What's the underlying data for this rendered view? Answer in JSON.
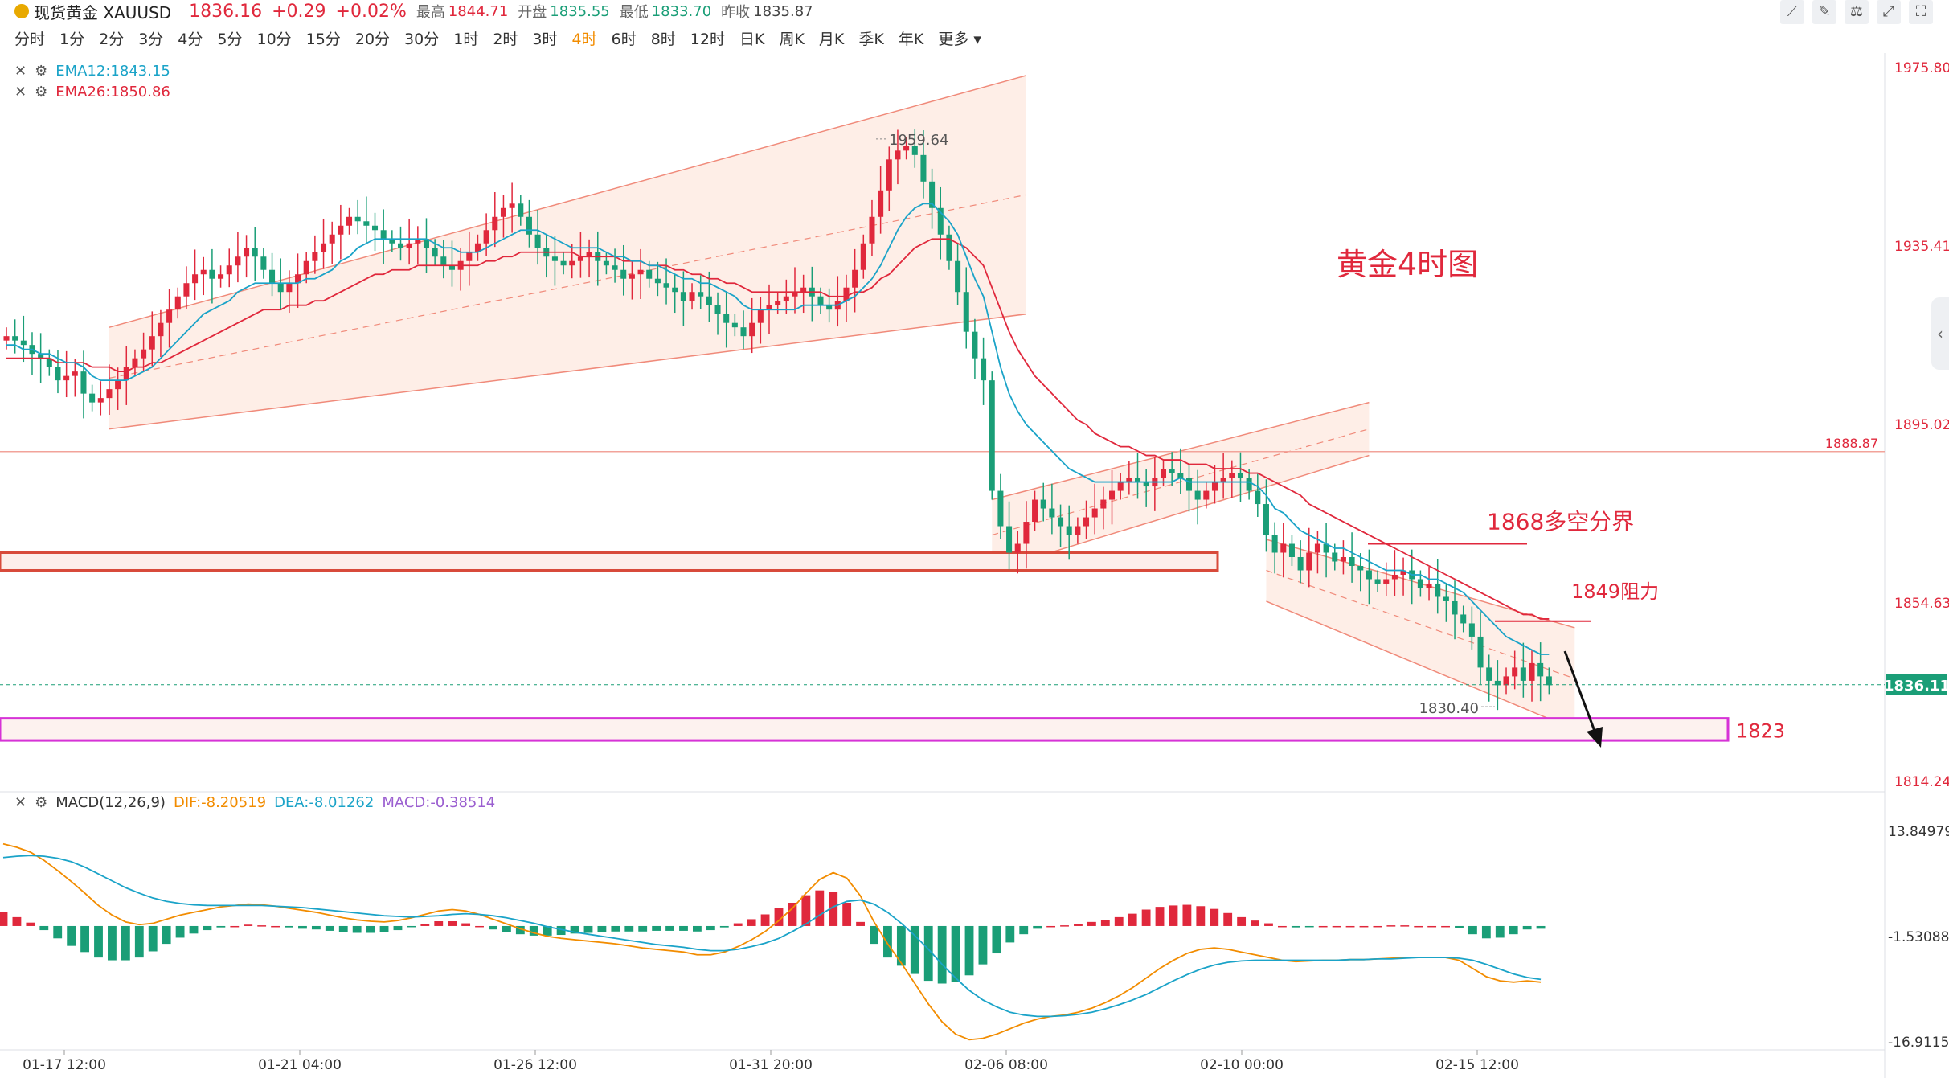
{
  "header": {
    "symbol": "现货黄金 XAUUSD",
    "price": "1836.16",
    "change": "+0.29",
    "change_pct": "+0.02%",
    "high_label": "最高",
    "high": "1844.71",
    "open_label": "开盘",
    "open": "1835.55",
    "low_label": "最低",
    "low": "1833.70",
    "prev_label": "昨收",
    "prev": "1835.87"
  },
  "timeframes": [
    "分时",
    "1分",
    "2分",
    "3分",
    "4分",
    "5分",
    "10分",
    "15分",
    "20分",
    "30分",
    "1时",
    "2时",
    "3时",
    "4时",
    "6时",
    "8时",
    "12时",
    "日K",
    "周K",
    "月K",
    "季K",
    "年K",
    "更多"
  ],
  "active_timeframe": "4时",
  "toolbar_icons": [
    "draw-line-icon",
    "edit-icon",
    "indicator-icon",
    "expand-icon",
    "fullscreen-icon"
  ],
  "ema_legend": [
    {
      "label": "EMA12:1843.15",
      "color": "#1aa3c8"
    },
    {
      "label": "EMA26:1850.86",
      "color": "#e0283c"
    }
  ],
  "macd_legend": {
    "name": "MACD(12,26,9)",
    "dif": "DIF:-8.20519",
    "dea": "DEA:-8.01262",
    "macd": "MACD:-0.38514",
    "dif_color": "#f28c00",
    "dea_color": "#1aa3c8",
    "macd_color": "#9b5fd0"
  },
  "colors": {
    "up": "#e0283c",
    "down": "#1a9e77",
    "ema12": "#1aa3c8",
    "ema26": "#e0283c",
    "channel": "#f5c4b4",
    "support_box": "#d84a3a",
    "target_box": "#d633d6",
    "annotation": "#e0283c"
  },
  "chart_data": [
    {
      "type": "candlestick",
      "title": "黄金4时图",
      "ylim": [
        1814.24,
        1975.8
      ],
      "y_ticks": [
        "1975.80",
        "1935.41",
        "1895.02",
        "1854.63",
        "1814.24"
      ],
      "x_ticks": [
        "01-17 12:00",
        "01-21 04:00",
        "01-26 12:00",
        "01-31 20:00",
        "02-06 08:00",
        "02-10 00:00",
        "02-15 12:00"
      ],
      "current_price_label": "1836.11",
      "line_level": {
        "value": 1888.87,
        "label": "1888.87"
      },
      "high_marker": {
        "value": 1959.64,
        "label": "1959.64"
      },
      "low_marker": {
        "value": 1830.4,
        "label": "1830.40"
      },
      "annotations": [
        {
          "text": "1868多空分界",
          "value": 1868
        },
        {
          "text": "1849阻力",
          "value": 1849
        },
        {
          "text": "1823",
          "value": 1823
        }
      ],
      "support_zone": [
        1862,
        1866
      ],
      "target_zone": [
        1823.5,
        1828.5
      ],
      "close_series": [
        1915,
        1914,
        1913,
        1911,
        1910,
        1908,
        1905,
        1906,
        1907,
        1902,
        1900,
        1901,
        1903,
        1905,
        1908,
        1910,
        1912,
        1915,
        1918,
        1921,
        1924,
        1927,
        1929,
        1930,
        1928,
        1929,
        1931,
        1933,
        1935,
        1933,
        1930,
        1927,
        1925,
        1927,
        1929,
        1932,
        1934,
        1936,
        1938,
        1940,
        1942,
        1941,
        1940,
        1939,
        1937,
        1936,
        1935,
        1936,
        1937,
        1935,
        1933,
        1931,
        1930,
        1932,
        1934,
        1936,
        1939,
        1942,
        1944,
        1945,
        1942,
        1938,
        1935,
        1933,
        1932,
        1931,
        1932,
        1933,
        1934,
        1932,
        1931,
        1930,
        1928,
        1929,
        1930,
        1928,
        1927,
        1926,
        1925,
        1923,
        1925,
        1924,
        1922,
        1920,
        1918,
        1917,
        1915,
        1918,
        1921,
        1922,
        1923,
        1924,
        1925,
        1926,
        1924,
        1922,
        1921,
        1923,
        1926,
        1930,
        1936,
        1942,
        1948,
        1955,
        1957,
        1958,
        1956,
        1950,
        1944,
        1938,
        1932,
        1925,
        1916,
        1910,
        1905,
        1880,
        1872,
        1866,
        1868,
        1873,
        1878,
        1876,
        1874,
        1872,
        1870,
        1872,
        1874,
        1876,
        1878,
        1880,
        1882,
        1883,
        1882,
        1881,
        1883,
        1885,
        1884,
        1883,
        1880,
        1878,
        1880,
        1882,
        1883,
        1884,
        1883,
        1880,
        1877,
        1870,
        1866,
        1868,
        1865,
        1862,
        1866,
        1868,
        1866,
        1864,
        1865,
        1863,
        1862,
        1860,
        1859,
        1860,
        1861,
        1862,
        1860,
        1858,
        1859,
        1856,
        1855,
        1852,
        1850,
        1847,
        1840,
        1837,
        1836,
        1838,
        1840,
        1837,
        1841,
        1838,
        1836
      ],
      "ema12_series": [
        1913,
        1913,
        1912,
        1912,
        1911,
        1911,
        1910,
        1909,
        1909,
        1908,
        1906,
        1905,
        1905,
        1905,
        1905,
        1906,
        1907,
        1908,
        1910,
        1912,
        1914,
        1916,
        1918,
        1920,
        1921,
        1922,
        1923,
        1925,
        1926,
        1927,
        1927,
        1927,
        1927,
        1927,
        1927,
        1928,
        1928,
        1929,
        1930,
        1932,
        1933,
        1935,
        1936,
        1937,
        1937,
        1937,
        1937,
        1937,
        1937,
        1937,
        1936,
        1935,
        1935,
        1934,
        1934,
        1934,
        1935,
        1936,
        1937,
        1938,
        1939,
        1939,
        1939,
        1938,
        1937,
        1936,
        1935,
        1935,
        1935,
        1935,
        1934,
        1933,
        1933,
        1932,
        1932,
        1931,
        1931,
        1930,
        1929,
        1928,
        1928,
        1927,
        1927,
        1926,
        1925,
        1924,
        1922,
        1921,
        1921,
        1921,
        1921,
        1921,
        1921,
        1922,
        1922,
        1922,
        1922,
        1922,
        1923,
        1924,
        1926,
        1928,
        1931,
        1935,
        1939,
        1942,
        1944,
        1945,
        1945,
        1943,
        1941,
        1938,
        1933,
        1928,
        1924,
        1916,
        1908,
        1902,
        1898,
        1895,
        1893,
        1891,
        1889,
        1887,
        1885,
        1884,
        1883,
        1882,
        1882,
        1882,
        1882,
        1882,
        1882,
        1882,
        1882,
        1882,
        1882,
        1883,
        1882,
        1882,
        1882,
        1882,
        1882,
        1882,
        1882,
        1882,
        1881,
        1879,
        1876,
        1875,
        1873,
        1871,
        1870,
        1869,
        1868,
        1867,
        1867,
        1866,
        1865,
        1864,
        1863,
        1862,
        1862,
        1862,
        1861,
        1861,
        1860,
        1860,
        1859,
        1858,
        1857,
        1855,
        1853,
        1851,
        1849,
        1847,
        1846,
        1845,
        1844,
        1843,
        1843
      ],
      "ema26_series": [
        1910,
        1910,
        1910,
        1910,
        1910,
        1910,
        1909,
        1909,
        1909,
        1909,
        1908,
        1908,
        1908,
        1907,
        1907,
        1908,
        1908,
        1909,
        1909,
        1910,
        1911,
        1912,
        1913,
        1914,
        1915,
        1916,
        1917,
        1918,
        1919,
        1920,
        1921,
        1921,
        1921,
        1922,
        1922,
        1922,
        1923,
        1923,
        1924,
        1925,
        1926,
        1927,
        1928,
        1929,
        1929,
        1930,
        1930,
        1930,
        1931,
        1931,
        1931,
        1931,
        1931,
        1931,
        1931,
        1931,
        1932,
        1932,
        1933,
        1933,
        1934,
        1934,
        1934,
        1934,
        1934,
        1934,
        1934,
        1933,
        1933,
        1933,
        1933,
        1933,
        1932,
        1932,
        1932,
        1931,
        1931,
        1931,
        1930,
        1930,
        1929,
        1929,
        1928,
        1928,
        1927,
        1927,
        1926,
        1925,
        1925,
        1925,
        1925,
        1925,
        1925,
        1925,
        1925,
        1925,
        1924,
        1924,
        1924,
        1925,
        1925,
        1926,
        1928,
        1929,
        1931,
        1933,
        1935,
        1936,
        1937,
        1937,
        1937,
        1936,
        1935,
        1933,
        1931,
        1926,
        1921,
        1916,
        1912,
        1909,
        1906,
        1904,
        1902,
        1900,
        1898,
        1896,
        1895,
        1893,
        1892,
        1891,
        1890,
        1890,
        1889,
        1888,
        1888,
        1887,
        1887,
        1887,
        1886,
        1886,
        1886,
        1885,
        1885,
        1885,
        1885,
        1884,
        1884,
        1883,
        1882,
        1881,
        1880,
        1879,
        1877,
        1876,
        1875,
        1874,
        1873,
        1872,
        1871,
        1870,
        1869,
        1868,
        1867,
        1866,
        1865,
        1864,
        1863,
        1862,
        1861,
        1860,
        1859,
        1858,
        1857,
        1856,
        1855,
        1854,
        1853,
        1852,
        1852,
        1851,
        1851
      ]
    },
    {
      "type": "bar+line",
      "title": "",
      "ylim": [
        -16.91154,
        13.84979
      ],
      "y_ticks": [
        "13.84979",
        "-1.53088",
        "-16.91154"
      ],
      "series": [
        {
          "name": "DIF",
          "values": [
            12,
            11.5,
            10.8,
            9.6,
            8.1,
            6.5,
            4.8,
            3.0,
            1.6,
            0.6,
            0.2,
            0.4,
            1.0,
            1.6,
            2.0,
            2.4,
            2.8,
            3.0,
            3.2,
            3.1,
            2.9,
            2.6,
            2.3,
            2.0,
            1.6,
            1.2,
            0.9,
            0.7,
            0.6,
            0.8,
            1.2,
            1.7,
            2.2,
            2.4,
            2.2,
            1.7,
            1.0,
            0.3,
            -0.4,
            -1.0,
            -1.5,
            -1.8,
            -2.0,
            -2.2,
            -2.4,
            -2.6,
            -2.9,
            -3.2,
            -3.4,
            -3.6,
            -3.8,
            -4.2,
            -4.2,
            -3.8,
            -3.0,
            -2.0,
            -0.8,
            0.8,
            2.6,
            4.8,
            6.8,
            7.8,
            7.0,
            4.4,
            0.6,
            -2.6,
            -5.4,
            -8.4,
            -11.4,
            -14.0,
            -15.8,
            -16.6,
            -16.4,
            -15.8,
            -15.0,
            -14.2,
            -13.6,
            -13.2,
            -13.0,
            -12.6,
            -12.0,
            -11.2,
            -10.2,
            -9.0,
            -7.6,
            -6.2,
            -5.0,
            -4.0,
            -3.4,
            -3.2,
            -3.4,
            -3.8,
            -4.2,
            -4.6,
            -5.0,
            -5.2,
            -5.1,
            -5.0,
            -5.0,
            -4.9,
            -4.9,
            -4.8,
            -4.7,
            -4.6,
            -4.6,
            -4.6,
            -4.6,
            -5.0,
            -6.2,
            -7.4,
            -8.0,
            -8.2,
            -8.0,
            -8.2
          ]
        },
        {
          "name": "DEA",
          "values": [
            10,
            10.2,
            10.3,
            10.2,
            9.9,
            9.4,
            8.6,
            7.6,
            6.6,
            5.6,
            4.8,
            4.1,
            3.6,
            3.3,
            3.1,
            3.0,
            3.0,
            3.0,
            3.0,
            3.0,
            2.9,
            2.8,
            2.7,
            2.5,
            2.3,
            2.1,
            1.9,
            1.7,
            1.5,
            1.4,
            1.3,
            1.4,
            1.5,
            1.7,
            1.8,
            1.7,
            1.5,
            1.2,
            0.8,
            0.4,
            -0.1,
            -0.5,
            -0.9,
            -1.2,
            -1.5,
            -1.8,
            -2.1,
            -2.4,
            -2.7,
            -2.9,
            -3.1,
            -3.4,
            -3.6,
            -3.6,
            -3.4,
            -3.0,
            -2.5,
            -1.8,
            -0.8,
            0.3,
            1.6,
            2.8,
            3.6,
            3.8,
            3.2,
            2.0,
            0.4,
            -1.4,
            -3.4,
            -5.6,
            -7.6,
            -9.4,
            -10.8,
            -11.8,
            -12.6,
            -13.0,
            -13.2,
            -13.2,
            -13.1,
            -12.9,
            -12.6,
            -12.1,
            -11.5,
            -10.8,
            -10.0,
            -9.0,
            -8.0,
            -7.1,
            -6.3,
            -5.7,
            -5.3,
            -5.1,
            -5.0,
            -5.0,
            -5.0,
            -5.0,
            -5.0,
            -5.0,
            -5.0,
            -4.9,
            -4.9,
            -4.8,
            -4.8,
            -4.7,
            -4.6,
            -4.6,
            -4.6,
            -4.7,
            -5.0,
            -5.6,
            -6.3,
            -7.0,
            -7.5,
            -7.8
          ]
        },
        {
          "name": "MACD",
          "values": [
            2.0,
            1.3,
            0.5,
            -0.6,
            -1.8,
            -2.9,
            -3.8,
            -4.6,
            -5.0,
            -5.0,
            -4.6,
            -3.7,
            -2.6,
            -1.7,
            -1.1,
            -0.6,
            -0.2,
            0.0,
            0.2,
            0.1,
            0.0,
            -0.2,
            -0.4,
            -0.5,
            -0.7,
            -0.9,
            -1.0,
            -1.0,
            -0.9,
            -0.6,
            -0.1,
            0.3,
            0.7,
            0.7,
            0.4,
            0.0,
            -0.5,
            -0.9,
            -1.2,
            -1.4,
            -1.4,
            -1.3,
            -1.1,
            -1.0,
            -0.9,
            -0.8,
            -0.8,
            -0.8,
            -0.7,
            -0.7,
            -0.7,
            -0.8,
            -0.6,
            -0.2,
            0.4,
            1.0,
            1.7,
            2.6,
            3.4,
            4.5,
            5.2,
            5.0,
            3.4,
            0.6,
            -2.6,
            -4.6,
            -5.8,
            -7.0,
            -8.0,
            -8.4,
            -8.2,
            -7.2,
            -5.6,
            -4.0,
            -2.4,
            -1.2,
            -0.4,
            0.0,
            0.1,
            0.3,
            0.6,
            0.9,
            1.3,
            1.8,
            2.4,
            2.8,
            3.0,
            3.1,
            2.9,
            2.5,
            1.9,
            1.3,
            0.8,
            0.4,
            0.0,
            -0.2,
            -0.1,
            0.0,
            0.0,
            0.0,
            0.0,
            0.0,
            0.1,
            0.1,
            0.0,
            0.0,
            0.0,
            -0.3,
            -1.2,
            -1.8,
            -1.7,
            -1.2,
            -0.5,
            -0.4
          ]
        }
      ]
    }
  ]
}
